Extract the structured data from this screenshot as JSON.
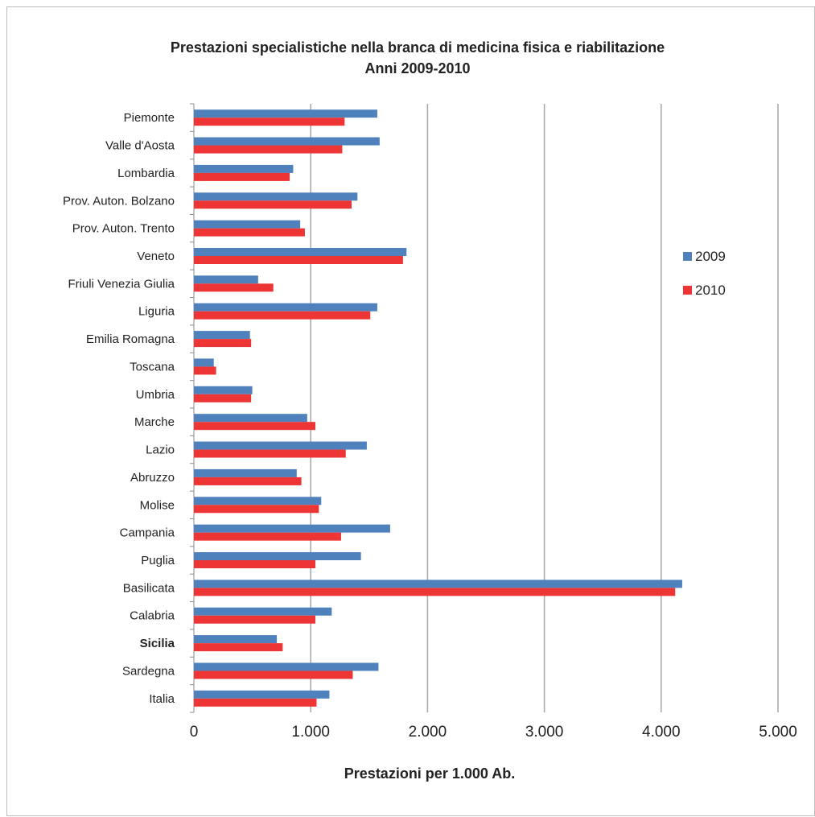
{
  "chart_data": {
    "type": "bar",
    "orientation": "horizontal",
    "title": "Prestazioni specialistiche nella branca di medicina fisica e riabilitazione",
    "subtitle": "Anni 2009-2010",
    "xlabel": "Prestazioni per 1.000 Ab.",
    "ylabel": "",
    "xlim": [
      0,
      5000
    ],
    "x_ticks": [
      0,
      1000,
      2000,
      3000,
      4000,
      5000
    ],
    "x_tick_labels": [
      "0",
      "1.000",
      "2.000",
      "3.000",
      "4.000",
      "5.000"
    ],
    "grid": true,
    "legend_position": "right",
    "categories": [
      "Piemonte",
      "Valle d'Aosta",
      "Lombardia",
      "Prov. Auton. Bolzano",
      "Prov. Auton. Trento",
      "Veneto",
      "Friuli Venezia Giulia",
      "Liguria",
      "Emilia Romagna",
      "Toscana",
      "Umbria",
      "Marche",
      "Lazio",
      "Abruzzo",
      "Molise",
      "Campania",
      "Puglia",
      "Basilicata",
      "Calabria",
      "Sicilia",
      "Sardegna",
      "Italia"
    ],
    "bold_categories": [
      "Sicilia"
    ],
    "series": [
      {
        "name": "2009",
        "color": "#4f81bd",
        "values": [
          1570,
          1590,
          850,
          1400,
          910,
          1820,
          550,
          1570,
          480,
          170,
          500,
          970,
          1480,
          880,
          1090,
          1680,
          1430,
          4180,
          1180,
          710,
          1580,
          1160
        ]
      },
      {
        "name": "2010",
        "color": "#ee3535",
        "values": [
          1290,
          1270,
          820,
          1350,
          950,
          1790,
          680,
          1510,
          490,
          190,
          490,
          1040,
          1300,
          920,
          1070,
          1260,
          1040,
          4120,
          1040,
          760,
          1360,
          1050
        ]
      }
    ]
  }
}
